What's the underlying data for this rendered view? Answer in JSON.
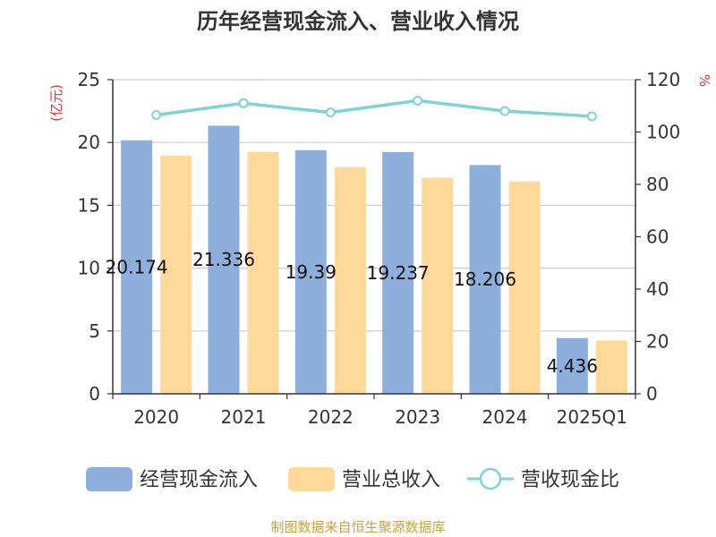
{
  "chart_data": {
    "type": "bar",
    "title": "历年经营现金流入、营业收入情况",
    "categories": [
      "2020",
      "2021",
      "2022",
      "2023",
      "2024",
      "2025Q1"
    ],
    "series": [
      {
        "name": "经营现金流入",
        "type": "bar",
        "axis": "left",
        "color": "#8eaedb",
        "values": [
          20.174,
          21.336,
          19.39,
          19.237,
          18.206,
          4.436
        ],
        "labels": [
          "20.174",
          "21.336",
          "19.39",
          "19.237",
          "18.206",
          "4.436"
        ]
      },
      {
        "name": "营业总收入",
        "type": "bar",
        "axis": "left",
        "color": "#ffd99a",
        "values": [
          18.95,
          19.25,
          18.05,
          17.2,
          16.9,
          4.25
        ]
      },
      {
        "name": "营收现金比",
        "type": "line",
        "axis": "right",
        "color": "#7fd3d6",
        "values": [
          106.5,
          111,
          107.5,
          112,
          108,
          106
        ]
      }
    ],
    "y_left": {
      "unit": "(亿元)",
      "ylim": [
        0,
        25
      ],
      "ticks": [
        "0",
        "5",
        "10",
        "15",
        "20",
        "25"
      ]
    },
    "y_right": {
      "unit": "%",
      "ylim": [
        0,
        120
      ],
      "ticks": [
        "0",
        "20",
        "40",
        "60",
        "80",
        "100",
        "120"
      ]
    },
    "grid": true,
    "legend_position": "bottom"
  },
  "source": "制图数据来自恒生聚源数据库"
}
